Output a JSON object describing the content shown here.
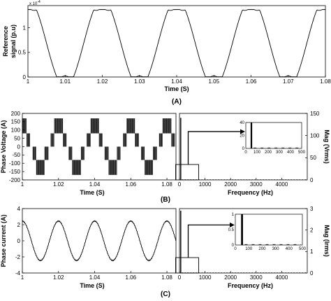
{
  "chart_data": [
    {
      "panel": "(A)",
      "type": "line",
      "ylabel": "Reference\nsignal (p.u)",
      "xlabel": "Time (S)",
      "y_multiplier": "x 10",
      "y_exponent": "-4",
      "xlim": [
        1.0,
        1.08
      ],
      "ylim": [
        0,
        0.000145
      ],
      "x_ticks": [
        "1",
        "1.01",
        "1.02",
        "1.03",
        "1.04",
        "1.05",
        "1.06",
        "1.07",
        "1.08"
      ],
      "y_ticks": [
        "0",
        "0.5",
        "1"
      ],
      "signal": {
        "kind": "flat-topped periodic",
        "period_s": 0.02,
        "min": 5e-07,
        "max": 0.000137
      }
    },
    {
      "panel": "(B)",
      "type": "line",
      "ylabel": "Phase Voltage (A)",
      "xlabel": "Time (S)",
      "xlim": [
        1.0,
        1.085
      ],
      "ylim": [
        -200,
        200
      ],
      "x_ticks": [
        "1",
        "1.02",
        "1.04",
        "1.06",
        "1.08"
      ],
      "y_ticks": [
        "200",
        "150",
        "100",
        "50",
        "0",
        "-50",
        "-100",
        "-150",
        "-200"
      ],
      "signal": {
        "kind": "stepped PWM",
        "period_s": 0.02,
        "levels": [
          -170,
          -80,
          80,
          170
        ]
      },
      "spectrum": {
        "type": "bar",
        "xlabel": "Frequency (Hz)",
        "ylabel": "Mag (Vrms)",
        "xlim": [
          0,
          5000
        ],
        "ylim": [
          0,
          150
        ],
        "x_ticks": [
          "0",
          "1000",
          "2000",
          "3000",
          "4000"
        ],
        "y_ticks": [
          "150",
          "100",
          "50",
          "0"
        ],
        "fundamental": {
          "freq": 50,
          "mag": 140
        },
        "inset": {
          "xlim": [
            0,
            500
          ],
          "ylim": [
            0,
            40
          ],
          "x_ticks": [
            "0",
            "100",
            "200",
            "300",
            "400",
            "500"
          ],
          "y_ticks": [
            "40",
            "20",
            "0"
          ]
        }
      }
    },
    {
      "panel": "(C)",
      "type": "line",
      "ylabel": "Phase current (A)",
      "xlabel": "Time (S)",
      "xlim": [
        1.0,
        1.085
      ],
      "ylim": [
        -4,
        4
      ],
      "x_ticks": [
        "1",
        "1.02",
        "1.04",
        "1.06",
        "1.08"
      ],
      "y_ticks": [
        "4",
        "2",
        "0",
        "-2",
        "-4"
      ],
      "signal": {
        "kind": "sine",
        "period_s": 0.02,
        "amplitude": 2.45
      },
      "spectrum": {
        "type": "bar",
        "xlabel": "Frequency (Hz)",
        "ylabel": "Mag (Irms)",
        "xlim": [
          0,
          5000
        ],
        "ylim": [
          0,
          3
        ],
        "x_ticks": [
          "0",
          "1000",
          "2000",
          "3000",
          "4000"
        ],
        "y_ticks": [
          "3",
          "2",
          "1",
          "0"
        ],
        "fundamental": {
          "freq": 50,
          "mag": 2.9
        },
        "inset": {
          "xlim": [
            0,
            500
          ],
          "ylim": [
            0,
            1
          ],
          "x_ticks": [
            "0",
            "100",
            "200",
            "300",
            "400",
            "500"
          ],
          "y_ticks": [
            "1",
            "0.5",
            "0"
          ]
        }
      }
    }
  ]
}
